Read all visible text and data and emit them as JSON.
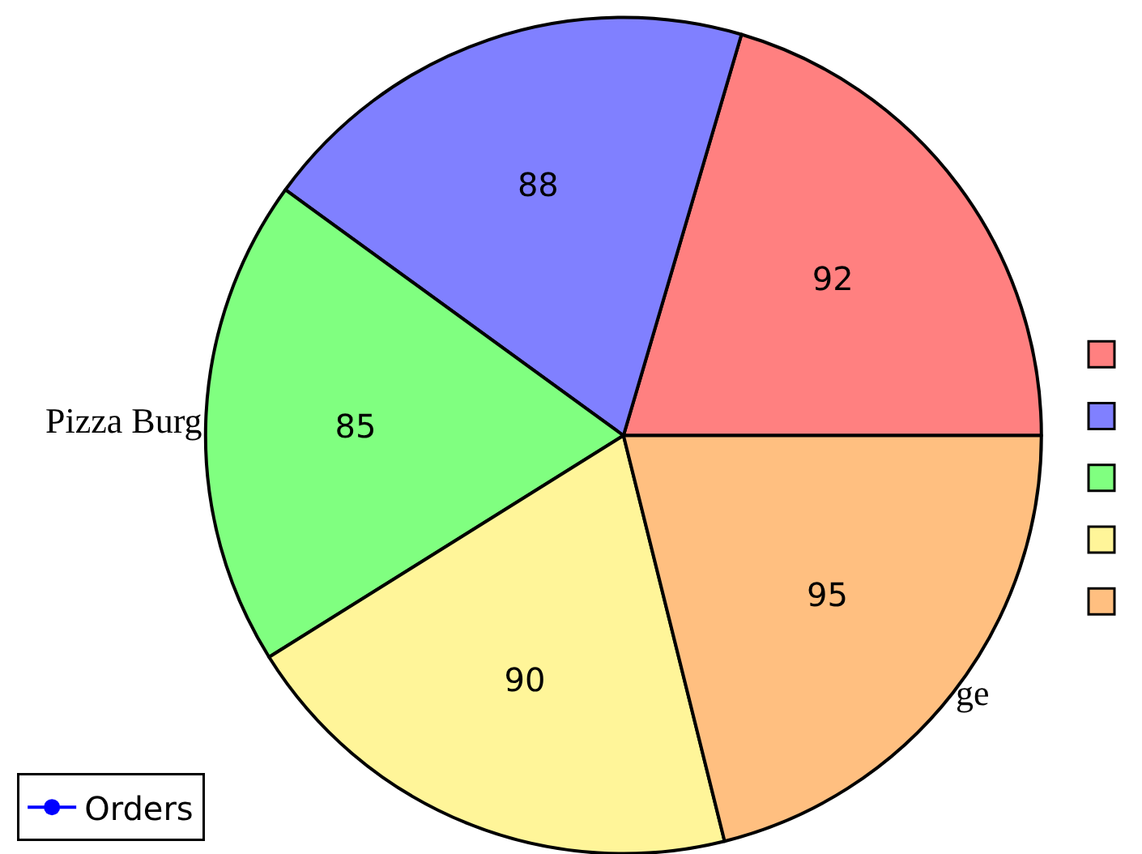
{
  "chart_data": {
    "type": "pie",
    "categories": [
      null,
      null,
      "Pizza Burg",
      null,
      "ge"
    ],
    "series": [
      {
        "name": "Orders",
        "color": "#0000ff",
        "values": [
          92,
          88,
          85,
          90,
          95
        ]
      }
    ],
    "colors": [
      "#ff8080",
      "#8080ff",
      "#80ff80",
      "#fff599",
      "#ffbf80"
    ],
    "data_labels": true,
    "marker": "circle",
    "legend": "bottom left"
  }
}
